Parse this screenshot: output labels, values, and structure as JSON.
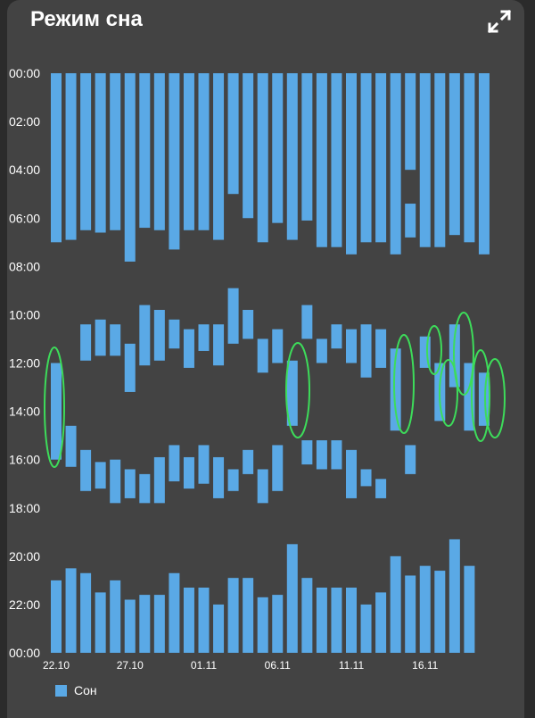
{
  "header": {
    "title": "Режим сна",
    "expand_icon": "expand-icon"
  },
  "legend": {
    "label": "Сон",
    "color": "#5aa9e6"
  },
  "colors": {
    "card": "#434343",
    "bar": "#5aa9e6",
    "annotation": "#3ddc5a"
  },
  "chart_data": {
    "type": "bar",
    "subtype": "floating-range",
    "y_axis": {
      "reversed": true,
      "unit": "hours",
      "range": [
        0,
        24
      ],
      "tick_labels": [
        "00:00",
        "02:00",
        "04:00",
        "06:00",
        "08:00",
        "10:00",
        "12:00",
        "14:00",
        "16:00",
        "18:00",
        "20:00",
        "22:00",
        "00:00"
      ]
    },
    "x_tick_labels": [
      {
        "day": 0,
        "label": "22.10"
      },
      {
        "day": 5,
        "label": "27.10"
      },
      {
        "day": 10,
        "label": "01.11"
      },
      {
        "day": 15,
        "label": "06.11"
      },
      {
        "day": 20,
        "label": "11.11"
      },
      {
        "day": 25,
        "label": "16.11"
      }
    ],
    "grid": false,
    "series": [
      {
        "name": "Сон",
        "bars": [
          {
            "day": 0,
            "start": 0,
            "end": 7.0
          },
          {
            "day": 0,
            "start": 12.0,
            "end": 16.0
          },
          {
            "day": 0,
            "start": 21.0,
            "end": 24
          },
          {
            "day": 1,
            "start": 0,
            "end": 6.9
          },
          {
            "day": 1,
            "start": 14.6,
            "end": 16.3
          },
          {
            "day": 1,
            "start": 20.5,
            "end": 24
          },
          {
            "day": 2,
            "start": 0,
            "end": 6.5
          },
          {
            "day": 2,
            "start": 10.4,
            "end": 11.9
          },
          {
            "day": 2,
            "start": 15.6,
            "end": 17.3
          },
          {
            "day": 2,
            "start": 20.7,
            "end": 24
          },
          {
            "day": 3,
            "start": 0,
            "end": 6.6
          },
          {
            "day": 3,
            "start": 10.2,
            "end": 11.7
          },
          {
            "day": 3,
            "start": 16.1,
            "end": 17.2
          },
          {
            "day": 3,
            "start": 21.5,
            "end": 24
          },
          {
            "day": 4,
            "start": 0,
            "end": 6.5
          },
          {
            "day": 4,
            "start": 10.4,
            "end": 11.7
          },
          {
            "day": 4,
            "start": 16.0,
            "end": 17.8
          },
          {
            "day": 4,
            "start": 21.0,
            "end": 24
          },
          {
            "day": 5,
            "start": 0,
            "end": 7.8
          },
          {
            "day": 5,
            "start": 11.2,
            "end": 13.2
          },
          {
            "day": 5,
            "start": 16.4,
            "end": 17.6
          },
          {
            "day": 5,
            "start": 21.8,
            "end": 24
          },
          {
            "day": 6,
            "start": 0,
            "end": 6.4
          },
          {
            "day": 6,
            "start": 9.6,
            "end": 12.1
          },
          {
            "day": 6,
            "start": 16.6,
            "end": 17.8
          },
          {
            "day": 6,
            "start": 21.6,
            "end": 24
          },
          {
            "day": 7,
            "start": 0,
            "end": 6.5
          },
          {
            "day": 7,
            "start": 9.8,
            "end": 11.9
          },
          {
            "day": 7,
            "start": 15.9,
            "end": 17.8
          },
          {
            "day": 7,
            "start": 21.6,
            "end": 24
          },
          {
            "day": 8,
            "start": 0,
            "end": 7.3
          },
          {
            "day": 8,
            "start": 10.2,
            "end": 11.4
          },
          {
            "day": 8,
            "start": 15.4,
            "end": 16.9
          },
          {
            "day": 8,
            "start": 20.7,
            "end": 24
          },
          {
            "day": 9,
            "start": 0,
            "end": 6.5
          },
          {
            "day": 9,
            "start": 10.6,
            "end": 12.2
          },
          {
            "day": 9,
            "start": 15.9,
            "end": 17.2
          },
          {
            "day": 9,
            "start": 21.3,
            "end": 24
          },
          {
            "day": 10,
            "start": 0,
            "end": 6.5
          },
          {
            "day": 10,
            "start": 10.4,
            "end": 11.5
          },
          {
            "day": 10,
            "start": 15.4,
            "end": 17.0
          },
          {
            "day": 10,
            "start": 21.3,
            "end": 24
          },
          {
            "day": 11,
            "start": 0,
            "end": 6.9
          },
          {
            "day": 11,
            "start": 10.4,
            "end": 12.1
          },
          {
            "day": 11,
            "start": 15.9,
            "end": 17.6
          },
          {
            "day": 11,
            "start": 22.0,
            "end": 24
          },
          {
            "day": 12,
            "start": 0,
            "end": 5.0
          },
          {
            "day": 12,
            "start": 8.9,
            "end": 11.2
          },
          {
            "day": 12,
            "start": 16.4,
            "end": 17.3
          },
          {
            "day": 12,
            "start": 20.9,
            "end": 24
          },
          {
            "day": 13,
            "start": 0,
            "end": 6.0
          },
          {
            "day": 13,
            "start": 9.8,
            "end": 11.0
          },
          {
            "day": 13,
            "start": 15.6,
            "end": 16.6
          },
          {
            "day": 13,
            "start": 20.9,
            "end": 24
          },
          {
            "day": 14,
            "start": 0,
            "end": 7.0
          },
          {
            "day": 14,
            "start": 11.0,
            "end": 12.4
          },
          {
            "day": 14,
            "start": 16.4,
            "end": 17.8
          },
          {
            "day": 14,
            "start": 21.7,
            "end": 24
          },
          {
            "day": 15,
            "start": 0,
            "end": 6.2
          },
          {
            "day": 15,
            "start": 10.6,
            "end": 12.0
          },
          {
            "day": 15,
            "start": 15.4,
            "end": 17.3
          },
          {
            "day": 15,
            "start": 21.6,
            "end": 24
          },
          {
            "day": 16,
            "start": 0,
            "end": 6.9
          },
          {
            "day": 16,
            "start": 11.9,
            "end": 14.6
          },
          {
            "day": 16,
            "start": 19.5,
            "end": 24
          },
          {
            "day": 17,
            "start": 0,
            "end": 6.1
          },
          {
            "day": 17,
            "start": 9.6,
            "end": 11.0
          },
          {
            "day": 17,
            "start": 15.2,
            "end": 16.2
          },
          {
            "day": 17,
            "start": 20.9,
            "end": 24
          },
          {
            "day": 18,
            "start": 0,
            "end": 7.2
          },
          {
            "day": 18,
            "start": 11.0,
            "end": 12.0
          },
          {
            "day": 18,
            "start": 15.2,
            "end": 16.4
          },
          {
            "day": 18,
            "start": 21.3,
            "end": 24
          },
          {
            "day": 19,
            "start": 0,
            "end": 7.2
          },
          {
            "day": 19,
            "start": 10.4,
            "end": 11.4
          },
          {
            "day": 19,
            "start": 15.2,
            "end": 16.4
          },
          {
            "day": 19,
            "start": 21.3,
            "end": 24
          },
          {
            "day": 20,
            "start": 0,
            "end": 7.5
          },
          {
            "day": 20,
            "start": 10.6,
            "end": 12.0
          },
          {
            "day": 20,
            "start": 15.6,
            "end": 17.6
          },
          {
            "day": 20,
            "start": 21.3,
            "end": 24
          },
          {
            "day": 21,
            "start": 0,
            "end": 7.0
          },
          {
            "day": 21,
            "start": 10.4,
            "end": 12.6
          },
          {
            "day": 21,
            "start": 16.4,
            "end": 17.1
          },
          {
            "day": 21,
            "start": 22.0,
            "end": 24
          },
          {
            "day": 22,
            "start": 0,
            "end": 7.0
          },
          {
            "day": 22,
            "start": 10.6,
            "end": 12.2
          },
          {
            "day": 22,
            "start": 16.8,
            "end": 17.6
          },
          {
            "day": 22,
            "start": 21.5,
            "end": 24
          },
          {
            "day": 23,
            "start": 0,
            "end": 7.5
          },
          {
            "day": 23,
            "start": 11.4,
            "end": 14.8
          },
          {
            "day": 23,
            "start": 20.0,
            "end": 24
          },
          {
            "day": 24,
            "start": 0,
            "end": 4.0
          },
          {
            "day": 24,
            "start": 5.4,
            "end": 6.8
          },
          {
            "day": 24,
            "start": 15.4,
            "end": 16.6
          },
          {
            "day": 24,
            "start": 20.8,
            "end": 24
          },
          {
            "day": 25,
            "start": 0,
            "end": 7.2
          },
          {
            "day": 25,
            "start": 10.9,
            "end": 12.2
          },
          {
            "day": 25,
            "start": 20.4,
            "end": 24
          },
          {
            "day": 26,
            "start": 0,
            "end": 7.2
          },
          {
            "day": 26,
            "start": 12.0,
            "end": 14.4
          },
          {
            "day": 26,
            "start": 20.6,
            "end": 24
          },
          {
            "day": 27,
            "start": 0,
            "end": 6.7
          },
          {
            "day": 27,
            "start": 10.4,
            "end": 13.0
          },
          {
            "day": 27,
            "start": 19.3,
            "end": 24
          },
          {
            "day": 28,
            "start": 0,
            "end": 7.0
          },
          {
            "day": 28,
            "start": 12.0,
            "end": 14.8
          },
          {
            "day": 28,
            "start": 20.4,
            "end": 24
          },
          {
            "day": 29,
            "start": 0,
            "end": 7.5
          },
          {
            "day": 29,
            "start": 12.4,
            "end": 14.6
          }
        ]
      }
    ]
  }
}
